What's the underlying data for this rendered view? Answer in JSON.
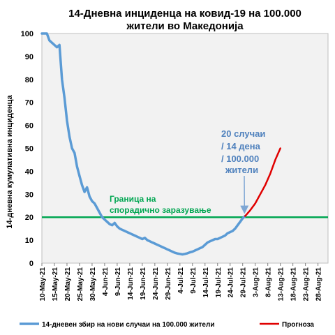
{
  "chart_data": {
    "type": "line",
    "title": [
      "14-Дневна инциденца на ковид-19 на 100.000",
      "жители во Македонија"
    ],
    "ylabel": "14-дневна кумулативна инциденца",
    "xlabel": "",
    "ylim": [
      0,
      100
    ],
    "yticks": [
      0,
      10,
      20,
      30,
      40,
      50,
      60,
      70,
      80,
      90,
      100
    ],
    "x_start": "2021-05-10",
    "x_end": "2021-09-01",
    "xticks": [
      {
        "label": "10-May-21",
        "date": "2021-05-10"
      },
      {
        "label": "15-May-21",
        "date": "2021-05-15"
      },
      {
        "label": "20-May-21",
        "date": "2021-05-20"
      },
      {
        "label": "25-May-21",
        "date": "2021-05-25"
      },
      {
        "label": "30-May-21",
        "date": "2021-05-30"
      },
      {
        "label": "4-Jun-21",
        "date": "2021-06-04"
      },
      {
        "label": "9-Jun-21",
        "date": "2021-06-09"
      },
      {
        "label": "14-Jun-21",
        "date": "2021-06-14"
      },
      {
        "label": "19-Jun-21",
        "date": "2021-06-19"
      },
      {
        "label": "24-Jun-21",
        "date": "2021-06-24"
      },
      {
        "label": "29-Jun-21",
        "date": "2021-06-29"
      },
      {
        "label": "4-Jul-21",
        "date": "2021-07-04"
      },
      {
        "label": "9-Jul-21",
        "date": "2021-07-09"
      },
      {
        "label": "14-Jul-21",
        "date": "2021-07-14"
      },
      {
        "label": "19-Jul-21",
        "date": "2021-07-19"
      },
      {
        "label": "24-Jul-21",
        "date": "2021-07-24"
      },
      {
        "label": "29-Jul-21",
        "date": "2021-07-29"
      },
      {
        "label": "3-Aug-21",
        "date": "2021-08-03"
      },
      {
        "label": "8-Aug-21",
        "date": "2021-08-08"
      },
      {
        "label": "13-Aug-21",
        "date": "2021-08-13"
      },
      {
        "label": "18-Aug-21",
        "date": "2021-08-18"
      },
      {
        "label": "23-Aug-21",
        "date": "2021-08-23"
      },
      {
        "label": "28-Aug-21",
        "date": "2021-08-28"
      }
    ],
    "grid": false,
    "legend_position": "bottom",
    "series": [
      {
        "name": "14-дневен збир на нови случаи на 100.000 жители",
        "color": "#5b9bd5",
        "points": [
          {
            "x": "2021-05-10",
            "y": 108
          },
          {
            "x": "2021-05-12",
            "y": 100
          },
          {
            "x": "2021-05-13",
            "y": 97
          },
          {
            "x": "2021-05-14",
            "y": 96
          },
          {
            "x": "2021-05-15",
            "y": 95
          },
          {
            "x": "2021-05-16",
            "y": 94
          },
          {
            "x": "2021-05-17",
            "y": 95
          },
          {
            "x": "2021-05-18",
            "y": 80
          },
          {
            "x": "2021-05-19",
            "y": 72
          },
          {
            "x": "2021-05-20",
            "y": 62
          },
          {
            "x": "2021-05-21",
            "y": 55
          },
          {
            "x": "2021-05-22",
            "y": 50
          },
          {
            "x": "2021-05-23",
            "y": 48
          },
          {
            "x": "2021-05-24",
            "y": 42
          },
          {
            "x": "2021-05-25",
            "y": 38
          },
          {
            "x": "2021-05-26",
            "y": 34
          },
          {
            "x": "2021-05-27",
            "y": 31
          },
          {
            "x": "2021-05-28",
            "y": 33
          },
          {
            "x": "2021-05-29",
            "y": 29
          },
          {
            "x": "2021-05-30",
            "y": 27
          },
          {
            "x": "2021-05-31",
            "y": 26
          },
          {
            "x": "2021-06-01",
            "y": 24
          },
          {
            "x": "2021-06-02",
            "y": 22
          },
          {
            "x": "2021-06-03",
            "y": 20
          },
          {
            "x": "2021-06-04",
            "y": 19
          },
          {
            "x": "2021-06-05",
            "y": 18
          },
          {
            "x": "2021-06-06",
            "y": 17
          },
          {
            "x": "2021-06-07",
            "y": 16.5
          },
          {
            "x": "2021-06-08",
            "y": 17.5
          },
          {
            "x": "2021-06-09",
            "y": 16
          },
          {
            "x": "2021-06-10",
            "y": 15
          },
          {
            "x": "2021-06-11",
            "y": 14.5
          },
          {
            "x": "2021-06-12",
            "y": 14
          },
          {
            "x": "2021-06-13",
            "y": 13.5
          },
          {
            "x": "2021-06-14",
            "y": 13
          },
          {
            "x": "2021-06-15",
            "y": 12.5
          },
          {
            "x": "2021-06-16",
            "y": 12
          },
          {
            "x": "2021-06-17",
            "y": 11.5
          },
          {
            "x": "2021-06-18",
            "y": 11
          },
          {
            "x": "2021-06-19",
            "y": 10.5
          },
          {
            "x": "2021-06-20",
            "y": 11
          },
          {
            "x": "2021-06-21",
            "y": 10
          },
          {
            "x": "2021-06-22",
            "y": 9.5
          },
          {
            "x": "2021-06-23",
            "y": 9
          },
          {
            "x": "2021-06-24",
            "y": 8.5
          },
          {
            "x": "2021-06-25",
            "y": 8
          },
          {
            "x": "2021-06-26",
            "y": 7.5
          },
          {
            "x": "2021-06-27",
            "y": 7
          },
          {
            "x": "2021-06-28",
            "y": 6.5
          },
          {
            "x": "2021-06-29",
            "y": 6
          },
          {
            "x": "2021-06-30",
            "y": 5.5
          },
          {
            "x": "2021-07-01",
            "y": 5
          },
          {
            "x": "2021-07-02",
            "y": 4.5
          },
          {
            "x": "2021-07-03",
            "y": 4.2
          },
          {
            "x": "2021-07-04",
            "y": 4
          },
          {
            "x": "2021-07-05",
            "y": 3.8
          },
          {
            "x": "2021-07-06",
            "y": 4
          },
          {
            "x": "2021-07-07",
            "y": 4.3
          },
          {
            "x": "2021-07-08",
            "y": 4.7
          },
          {
            "x": "2021-07-09",
            "y": 5
          },
          {
            "x": "2021-07-10",
            "y": 5.5
          },
          {
            "x": "2021-07-11",
            "y": 6
          },
          {
            "x": "2021-07-12",
            "y": 6.5
          },
          {
            "x": "2021-07-13",
            "y": 7
          },
          {
            "x": "2021-07-14",
            "y": 8
          },
          {
            "x": "2021-07-15",
            "y": 9
          },
          {
            "x": "2021-07-16",
            "y": 9.5
          },
          {
            "x": "2021-07-17",
            "y": 10
          },
          {
            "x": "2021-07-18",
            "y": 10.5
          },
          {
            "x": "2021-07-19",
            "y": 10.5
          },
          {
            "x": "2021-07-20",
            "y": 11
          },
          {
            "x": "2021-07-21",
            "y": 11.5
          },
          {
            "x": "2021-07-22",
            "y": 12
          },
          {
            "x": "2021-07-23",
            "y": 13
          },
          {
            "x": "2021-07-24",
            "y": 13.5
          },
          {
            "x": "2021-07-25",
            "y": 14
          },
          {
            "x": "2021-07-26",
            "y": 15
          },
          {
            "x": "2021-07-27",
            "y": 16.5
          },
          {
            "x": "2021-07-28",
            "y": 18
          },
          {
            "x": "2021-07-29",
            "y": 19.5
          },
          {
            "x": "2021-07-30",
            "y": 20.5
          }
        ]
      },
      {
        "name": "Прогноза",
        "color": "#e00000",
        "points": [
          {
            "x": "2021-07-30",
            "y": 20.5
          },
          {
            "x": "2021-08-01",
            "y": 23
          },
          {
            "x": "2021-08-03",
            "y": 26
          },
          {
            "x": "2021-08-05",
            "y": 30
          },
          {
            "x": "2021-08-07",
            "y": 34
          },
          {
            "x": "2021-08-09",
            "y": 39
          },
          {
            "x": "2021-08-11",
            "y": 45
          },
          {
            "x": "2021-08-13",
            "y": 50
          }
        ]
      }
    ],
    "threshold": {
      "value": 20,
      "color": "#00a651",
      "label": [
        "Граница на",
        "спорадично заразување"
      ]
    },
    "annotation": {
      "lines": [
        "20 случаи",
        "/ 14 дена",
        "/ 100.000",
        "жители"
      ],
      "color": "#4f81bd",
      "target": {
        "x": "2021-07-30",
        "y": 20.5
      }
    }
  }
}
